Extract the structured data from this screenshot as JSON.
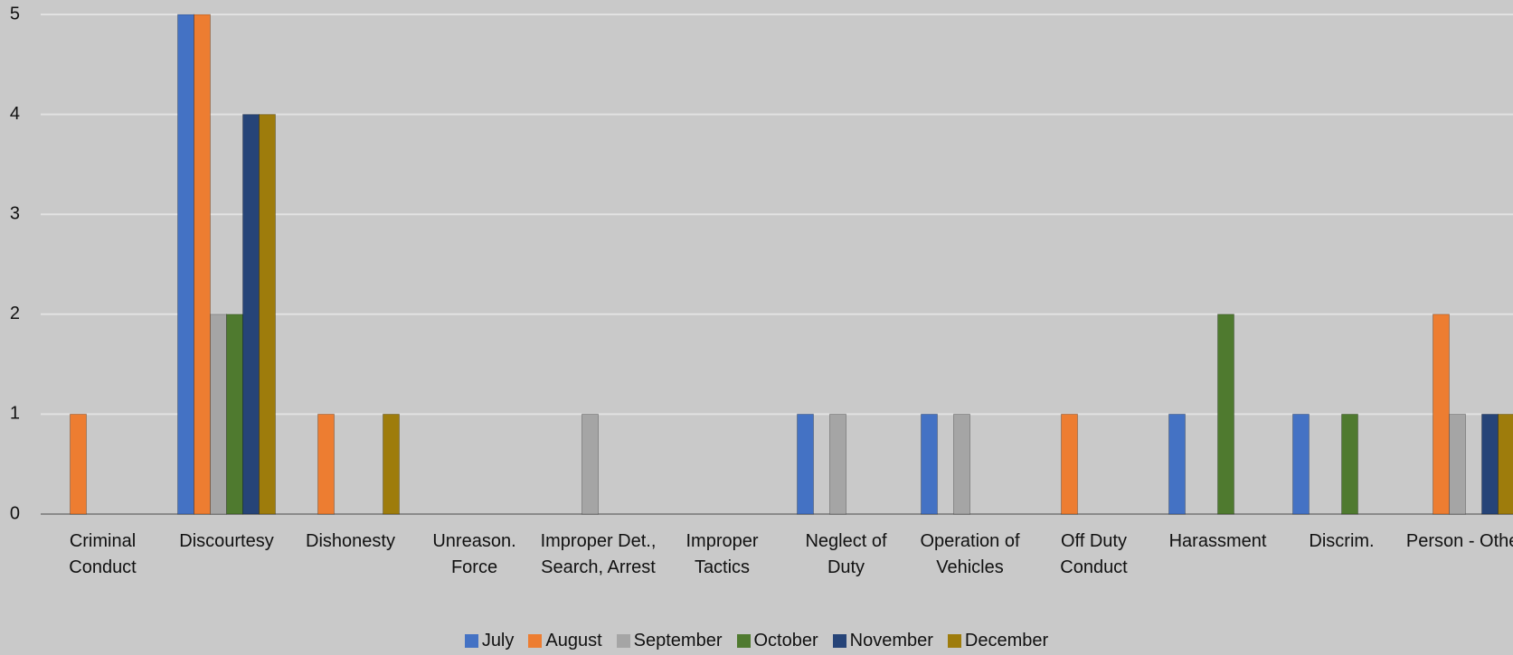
{
  "chart_data": {
    "type": "bar",
    "categories": [
      "Criminal Conduct",
      "Discourtesy",
      "Dishonesty",
      "Unreason. Force",
      "Improper Det., Search, Arrest",
      "Improper Tactics",
      "Neglect of Duty",
      "Operation of Vehicles",
      "Off Duty Conduct",
      "Harassment",
      "Discrim.",
      "Person - Other"
    ],
    "series": [
      {
        "name": "July",
        "color": "#4472c4",
        "values": [
          0,
          5,
          0,
          0,
          0,
          0,
          1,
          1,
          0,
          1,
          1,
          0
        ]
      },
      {
        "name": "August",
        "color": "#ed7d31",
        "values": [
          1,
          5,
          1,
          0,
          0,
          0,
          0,
          0,
          1,
          0,
          0,
          2
        ]
      },
      {
        "name": "September",
        "color": "#a5a5a5",
        "values": [
          0,
          2,
          0,
          0,
          1,
          0,
          1,
          1,
          0,
          0,
          0,
          1
        ]
      },
      {
        "name": "October",
        "color": "#4f7a2f",
        "values": [
          0,
          2,
          0,
          0,
          0,
          0,
          0,
          0,
          0,
          2,
          1,
          0
        ]
      },
      {
        "name": "November",
        "color": "#264478",
        "values": [
          0,
          4,
          0,
          0,
          0,
          0,
          0,
          0,
          0,
          0,
          0,
          1
        ]
      },
      {
        "name": "December",
        "color": "#9e7c0c",
        "values": [
          0,
          4,
          1,
          0,
          0,
          0,
          0,
          0,
          0,
          0,
          0,
          1
        ]
      }
    ],
    "ylim": [
      0,
      5
    ],
    "yticks": [
      0,
      1,
      2,
      3,
      4,
      5
    ],
    "grid": true,
    "legend": "bottom"
  }
}
